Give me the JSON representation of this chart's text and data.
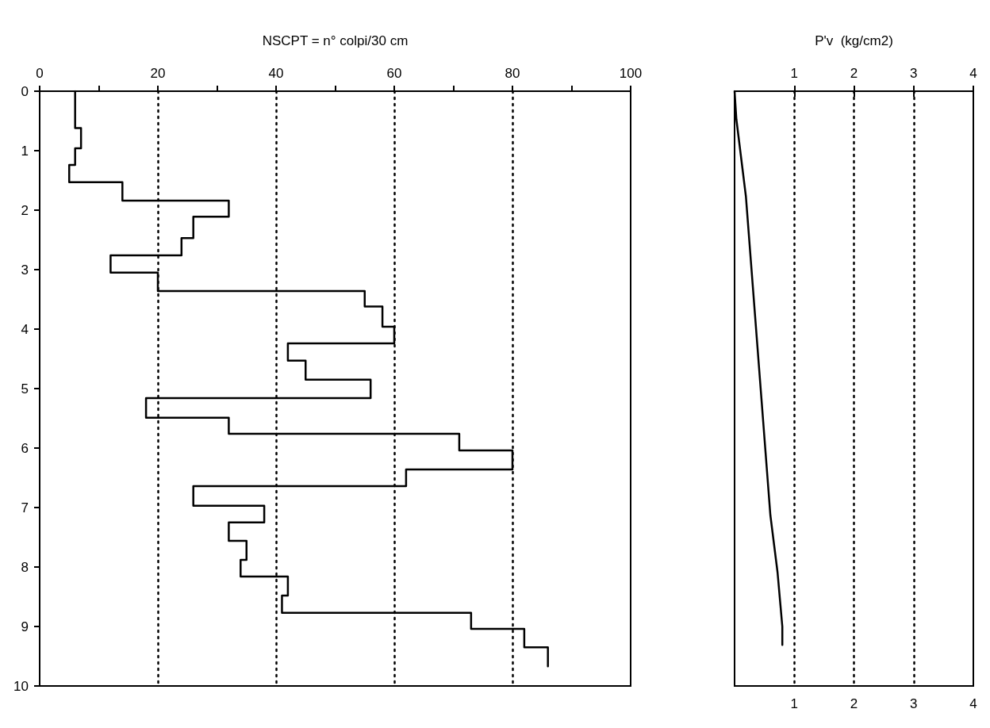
{
  "chart_data": [
    {
      "type": "line",
      "xlabel": "NSCPT = n° colpi/30 cm",
      "xlim": [
        0,
        100
      ],
      "ylim": [
        10,
        0
      ],
      "xticks": [
        0,
        {
          "value": 10,
          "label": null
        },
        20,
        {
          "value": 30,
          "label": null
        },
        40,
        {
          "value": 50,
          "label": null
        },
        60,
        {
          "value": 70,
          "label": null
        },
        80,
        {
          "value": 90,
          "label": null
        },
        100
      ],
      "yticks": [
        0,
        1,
        2,
        3,
        4,
        5,
        6,
        7,
        8,
        9,
        10
      ],
      "grid": "x",
      "marker": "none",
      "line_style": "solid",
      "series": [
        {
          "color": "#000000",
          "x": [
            6,
            6,
            7,
            7,
            6,
            6,
            5,
            5,
            14,
            14,
            32,
            32,
            26,
            26,
            24,
            24,
            12,
            12,
            20,
            20,
            55,
            55,
            58,
            58,
            60,
            60,
            42,
            42,
            45,
            45,
            56,
            56,
            18,
            18,
            32,
            32,
            71,
            71,
            80,
            80,
            62,
            62,
            26,
            26,
            38,
            38,
            32,
            32,
            35,
            35,
            34,
            34,
            42,
            42,
            41,
            41,
            73,
            73,
            82,
            82,
            86,
            86
          ],
          "values": [
            0,
            0.62,
            0.62,
            0.96,
            0.96,
            1.24,
            1.24,
            1.53,
            1.53,
            1.84,
            1.84,
            2.11,
            2.11,
            2.47,
            2.47,
            2.76,
            2.76,
            3.05,
            3.05,
            3.36,
            3.36,
            3.62,
            3.62,
            3.96,
            3.96,
            4.24,
            4.24,
            4.53,
            4.53,
            4.85,
            4.85,
            5.16,
            5.16,
            5.49,
            5.49,
            5.76,
            5.76,
            6.04,
            6.04,
            6.36,
            6.36,
            6.64,
            6.64,
            6.97,
            6.97,
            7.25,
            7.25,
            7.56,
            7.56,
            7.88,
            7.88,
            8.16,
            8.16,
            8.48,
            8.48,
            8.77,
            8.77,
            9.04,
            9.04,
            9.35,
            9.35,
            9.67
          ]
        }
      ]
    },
    {
      "type": "line",
      "x2label": "P'v  (kg/cm2)",
      "xlim": [
        0,
        4
      ],
      "xticks": [
        1,
        2,
        3,
        4
      ],
      "x2lim": [
        0,
        4
      ],
      "x2ticks": [
        1,
        2,
        3,
        4
      ],
      "ylim": [
        10,
        0
      ],
      "tick_labels": "x",
      "grid": "x",
      "marker": "none",
      "line_style": "solid",
      "series": [
        {
          "color": "#000000",
          "x": [
            0,
            0.03,
            0.19,
            0.6,
            0.72,
            0.8,
            0.8
          ],
          "values": [
            0,
            0.47,
            1.77,
            7.13,
            8.09,
            9.0,
            9.31
          ]
        }
      ]
    }
  ]
}
